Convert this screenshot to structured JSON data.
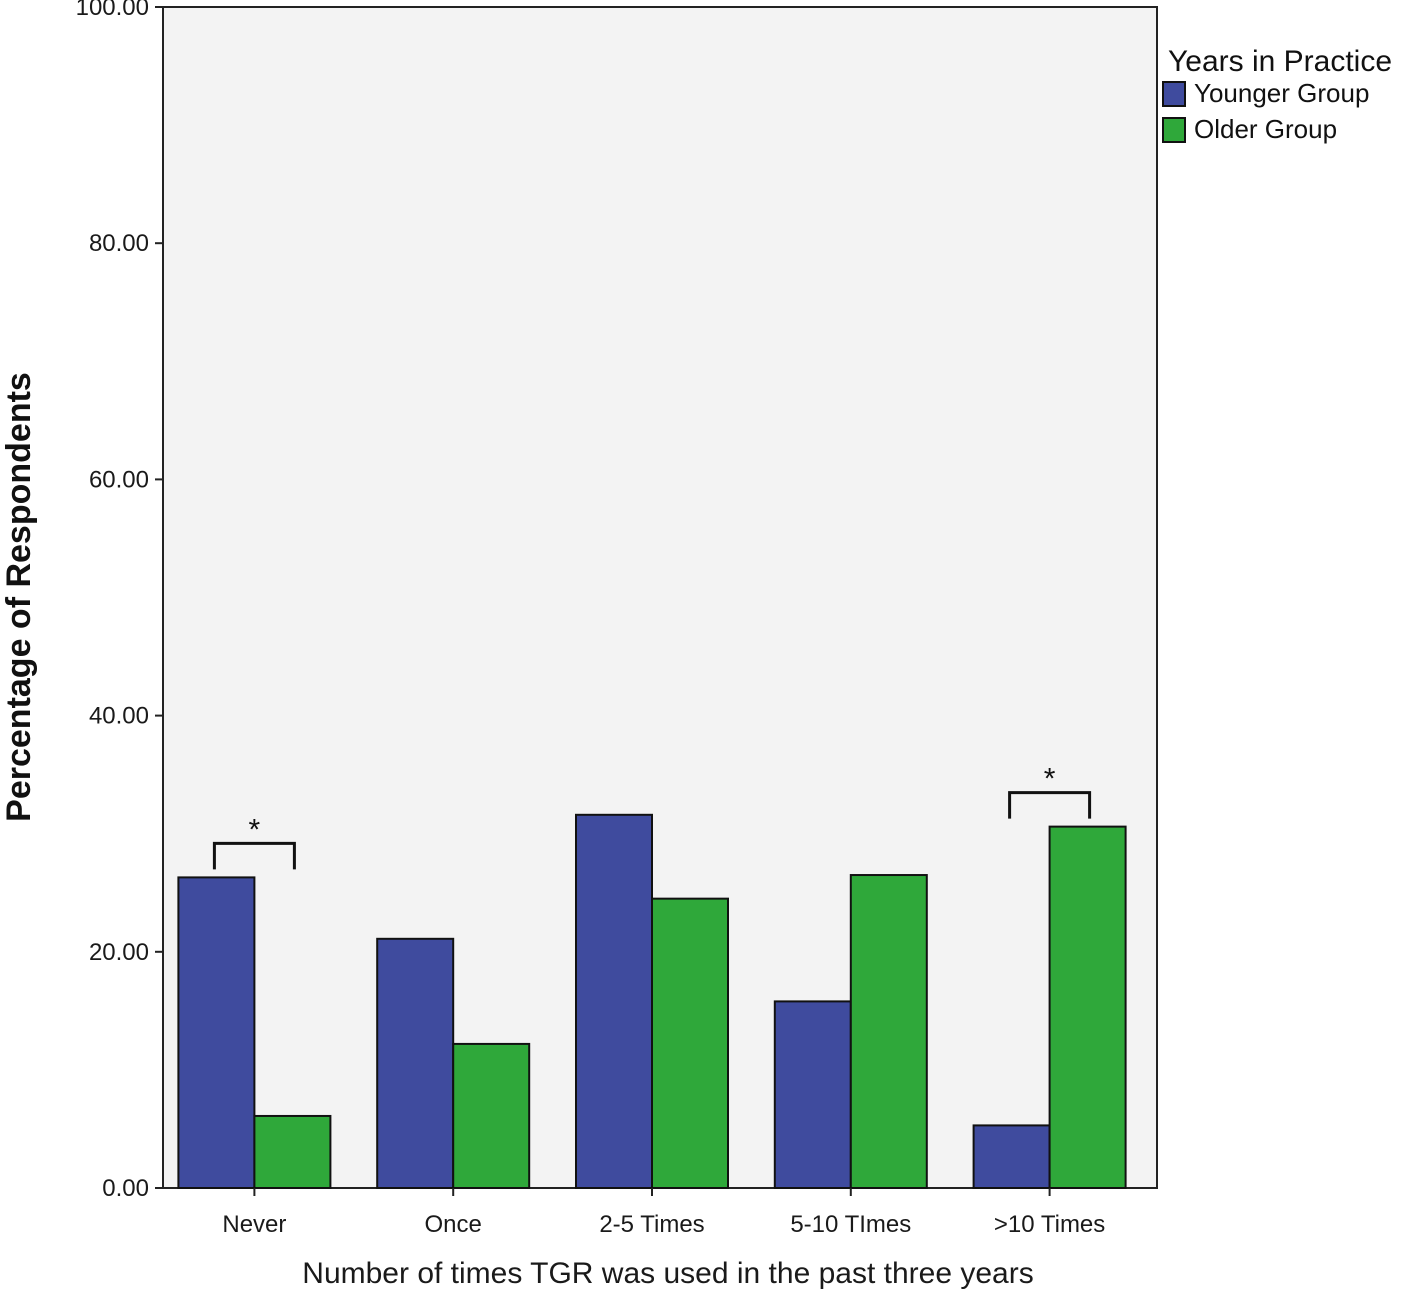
{
  "chart_data": {
    "type": "bar",
    "categories": [
      "Never",
      "Once",
      "2-5 Times",
      "5-10 TImes",
      ">10 Times"
    ],
    "series": [
      {
        "name": "Younger Group",
        "values": [
          26.3,
          21.1,
          31.6,
          15.8,
          5.3
        ],
        "color": "#3f4b9e"
      },
      {
        "name": "Older Group",
        "values": [
          6.1,
          12.2,
          24.5,
          26.5,
          30.6
        ],
        "color": "#2fa83a"
      }
    ],
    "xlabel": "Number of times TGR was used in the past three years",
    "ylabel": "Percentage of Respondents",
    "ylim": [
      0,
      100
    ],
    "yticks": [
      "0.00",
      "20.00",
      "40.00",
      "60.00",
      "80.00",
      "100.00"
    ],
    "legend": {
      "title": "Years in Practice",
      "placement": "right"
    },
    "grid": false,
    "plot_background": "#f3f3f3",
    "annotations": [
      {
        "category": "Never",
        "text": "*"
      },
      {
        "category": ">10 Times",
        "text": "*"
      }
    ]
  }
}
